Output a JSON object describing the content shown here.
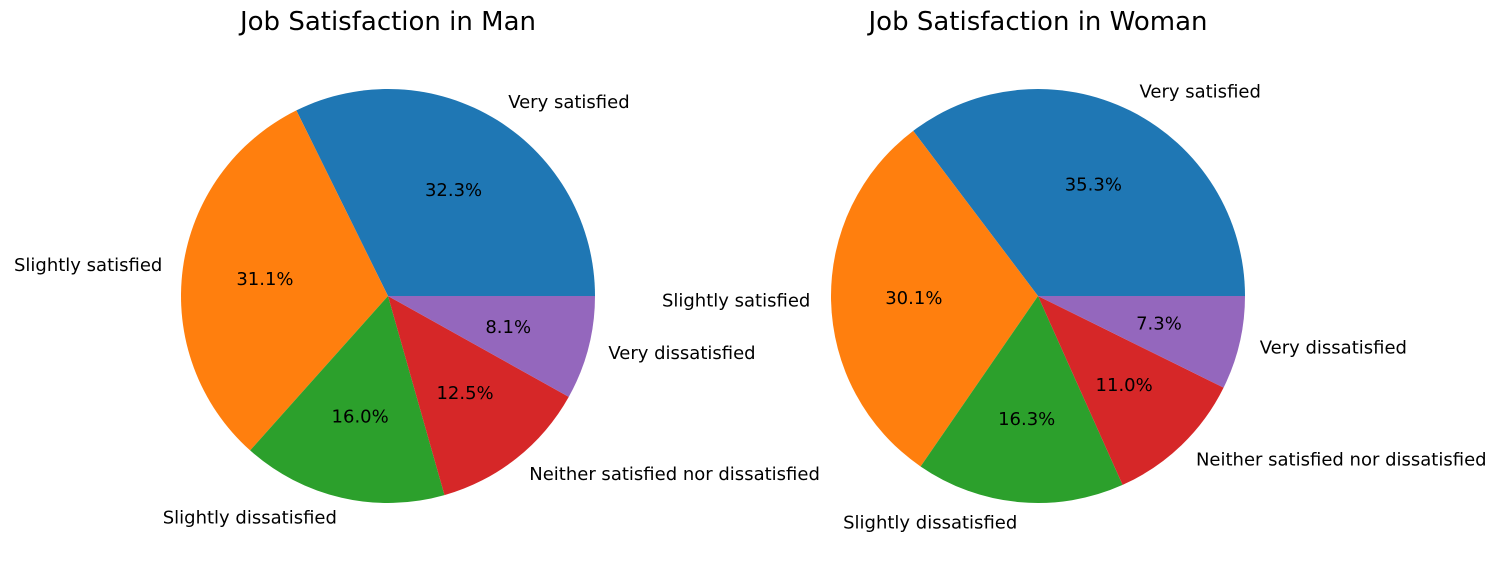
{
  "chart_data": [
    {
      "type": "pie",
      "title": "Job Satisfaction in Man",
      "categories": [
        "Very satisfied",
        "Slightly satisfied",
        "Slightly dissatisfied",
        "Neither satisfied nor dissatisfied",
        "Very dissatisfied"
      ],
      "values": [
        32.3,
        31.1,
        16.0,
        12.5,
        8.1
      ],
      "value_labels": [
        "32.3%",
        "31.1%",
        "16.0%",
        "12.5%",
        "8.1%"
      ],
      "colors": [
        "#1f77b4",
        "#ff7f0e",
        "#2ca02c",
        "#d62728",
        "#9467bd"
      ],
      "start_angle": 0,
      "direction": "counterclockwise"
    },
    {
      "type": "pie",
      "title": "Job Satisfaction in Woman",
      "categories": [
        "Very satisfied",
        "Slightly satisfied",
        "Slightly dissatisfied",
        "Neither satisfied nor dissatisfied",
        "Very dissatisfied"
      ],
      "values": [
        35.3,
        30.1,
        16.3,
        11.0,
        7.3
      ],
      "value_labels": [
        "35.3%",
        "30.1%",
        "16.3%",
        "11.0%",
        "7.3%"
      ],
      "colors": [
        "#1f77b4",
        "#ff7f0e",
        "#2ca02c",
        "#d62728",
        "#9467bd"
      ],
      "start_angle": 0,
      "direction": "counterclockwise"
    }
  ]
}
